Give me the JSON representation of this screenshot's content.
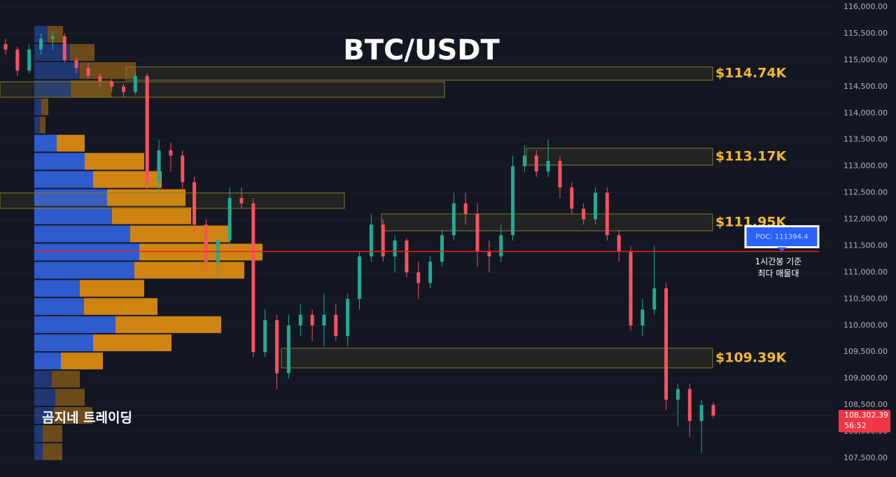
{
  "chart_data": {
    "type": "candlestick",
    "title": "BTC/USDT",
    "watermark": "곰지네 트레이딩",
    "ylim": [
      107144,
      116132
    ],
    "yticks": [
      {
        "value": 107500,
        "label": "107,500.00"
      },
      {
        "value": 108000,
        "label": "108,000.00"
      },
      {
        "value": 108500,
        "label": "108,500.00"
      },
      {
        "value": 109000,
        "label": "109,000.00"
      },
      {
        "value": 109500,
        "label": "109,500.00"
      },
      {
        "value": 110000,
        "label": "110,000.00"
      },
      {
        "value": 110500,
        "label": "110,500.00"
      },
      {
        "value": 111000,
        "label": "111,000.00"
      },
      {
        "value": 111500,
        "label": "111,500.00"
      },
      {
        "value": 112000,
        "label": "112,000.00"
      },
      {
        "value": 112500,
        "label": "112,500.00"
      },
      {
        "value": 113000,
        "label": "113,000.00"
      },
      {
        "value": 113500,
        "label": "113,500.00"
      },
      {
        "value": 114000,
        "label": "114,000.00"
      },
      {
        "value": 114500,
        "label": "114,500.00"
      },
      {
        "value": 115000,
        "label": "115,000.00"
      },
      {
        "value": 115500,
        "label": "115,500.00"
      },
      {
        "value": 116000,
        "label": "116,000.00"
      }
    ],
    "up_color": "#22ab94",
    "down_color": "#f7525f",
    "open": [
      115300,
      115200,
      114800,
      115200,
      115400,
      115450,
      115000,
      114850,
      114700,
      114600,
      114500,
      114400,
      114700,
      112700,
      113300,
      113200,
      112700,
      111900,
      111200,
      111600,
      112400,
      112300,
      109500,
      110100,
      109100,
      110000,
      110200,
      110000,
      110200,
      109800,
      110500,
      111300,
      111900,
      111300,
      111600,
      111000,
      110800,
      111200,
      111700,
      112300,
      112100,
      111400,
      111300,
      111700,
      113000,
      113200,
      112900,
      113100,
      112600,
      112200,
      112000,
      112500,
      111700,
      111400,
      110000,
      110300,
      110700,
      108600,
      108800,
      108200,
      108500
    ],
    "high": [
      115400,
      115250,
      115300,
      115500,
      115550,
      115500,
      115050,
      114950,
      114750,
      114650,
      114550,
      114800,
      114750,
      113500,
      113450,
      113300,
      112800,
      112000,
      111700,
      112600,
      112600,
      112400,
      110300,
      110200,
      110200,
      110400,
      110300,
      110600,
      110400,
      110600,
      111400,
      112100,
      112000,
      111700,
      111650,
      111200,
      111300,
      111800,
      112500,
      112500,
      112300,
      111600,
      111900,
      113200,
      113400,
      113300,
      113500,
      113200,
      112700,
      112300,
      112600,
      112600,
      111800,
      111500,
      110500,
      111500,
      110800,
      108900,
      108900,
      108600,
      108550
    ],
    "low": [
      115100,
      114700,
      114750,
      115100,
      115200,
      114950,
      114750,
      114650,
      114500,
      114400,
      114300,
      114350,
      112500,
      112500,
      112900,
      112500,
      111700,
      111000,
      110900,
      111400,
      112200,
      109400,
      109400,
      108800,
      109000,
      109800,
      109700,
      109600,
      109700,
      109600,
      110300,
      111200,
      111200,
      111000,
      110900,
      110500,
      110700,
      111100,
      111600,
      111900,
      111100,
      111000,
      111200,
      111600,
      112900,
      112800,
      112800,
      112400,
      112100,
      111900,
      111900,
      111600,
      111200,
      109900,
      109800,
      110200,
      108400,
      108100,
      107900,
      107600,
      108250
    ],
    "close": [
      115200,
      114800,
      115200,
      115400,
      115450,
      115000,
      114850,
      114700,
      114600,
      114500,
      114400,
      114700,
      112700,
      113300,
      113200,
      112700,
      111900,
      111200,
      111600,
      112400,
      112300,
      109500,
      110100,
      109100,
      110000,
      110200,
      110000,
      110200,
      109800,
      110500,
      111300,
      111900,
      111300,
      111600,
      111000,
      110800,
      111200,
      111700,
      112300,
      112100,
      111400,
      111300,
      111700,
      113000,
      113200,
      112900,
      113100,
      112600,
      112200,
      112000,
      112500,
      111700,
      111400,
      110000,
      110300,
      110700,
      108600,
      108800,
      108200,
      108500,
      108302.39
    ],
    "volume_profile": {
      "bins": [
        115657,
        115315,
        114973,
        114631,
        114289,
        113947,
        113605,
        113263,
        112921,
        112579,
        112237,
        111895,
        111553,
        111211,
        110869,
        110527,
        110185,
        109843,
        109501,
        109159,
        108817,
        108475,
        108133,
        107791,
        107449
      ],
      "buy": [
        19,
        51,
        65,
        52,
        10,
        8,
        32,
        72,
        84,
        104,
        111,
        137,
        150,
        143,
        65,
        71,
        116,
        84,
        38,
        25,
        30,
        28,
        12,
        12
      ],
      "sell": [
        22,
        35,
        80,
        58,
        10,
        8,
        40,
        85,
        98,
        112,
        113,
        142,
        176,
        157,
        92,
        105,
        151,
        112,
        60,
        40,
        42,
        55,
        28,
        28
      ],
      "buy_color": "#2f5fd8",
      "sell_color": "#d98a12"
    },
    "zones": [
      {
        "top": 114870,
        "bottom": 114620,
        "label": "$114.74K"
      },
      {
        "top": 114590,
        "bottom": 114300
      },
      {
        "top": 113338,
        "bottom": 113022,
        "label": "$113.17K"
      },
      {
        "top": 112496,
        "bottom": 112206
      },
      {
        "top": 112100,
        "bottom": 111783,
        "label": "$111.95K"
      },
      {
        "top": 109570,
        "bottom": 109200,
        "label": "$109.39K"
      }
    ],
    "poc": {
      "value": 111394.4,
      "label": "POC: 111394.4",
      "note": [
        "1시간봉 기준",
        "최다 매물대"
      ]
    },
    "last_price": {
      "value": 108302.39,
      "label": "108,302.39",
      "timer": "56:52"
    }
  }
}
